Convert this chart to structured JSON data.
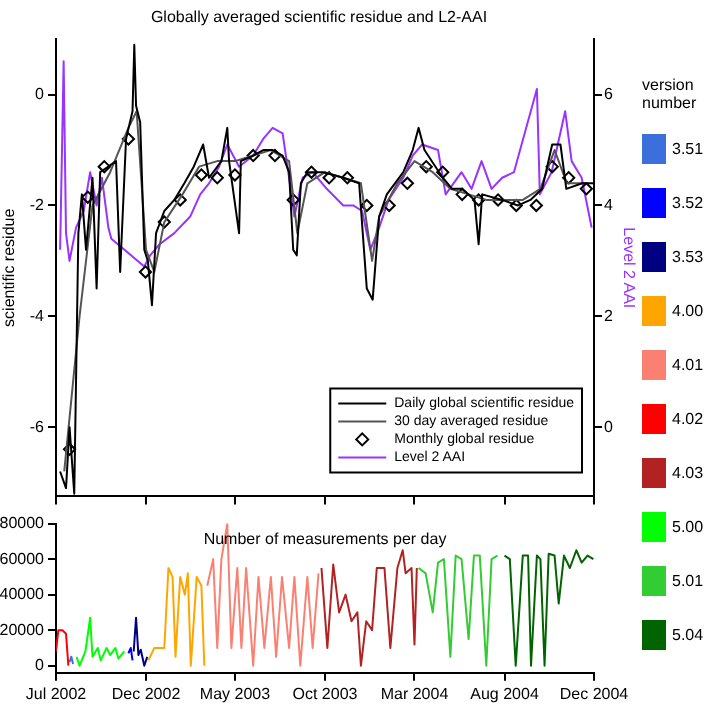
{
  "chart_data": [
    {
      "type": "line",
      "title": "Globally averaged scientific residue and L2-AAI",
      "ylabel": "scientific residue",
      "y2label": "Level 2 AAI",
      "xlim": [
        "2002-07-01",
        "2004-12-31"
      ],
      "xticks": [
        {
          "value": "2002-07-01",
          "label": null
        },
        {
          "value": "2002-12-01",
          "label": null
        },
        {
          "value": "2003-05-01",
          "label": null
        },
        {
          "value": "2003-10-01",
          "label": null
        },
        {
          "value": "2004-03-01",
          "label": null
        },
        {
          "value": "2004-08-01",
          "label": null
        },
        {
          "value": "2004-12-31",
          "label": null
        }
      ],
      "ylim": [
        -7.25,
        1
      ],
      "yticks": [
        -6,
        -4,
        -2,
        0
      ],
      "y2lim": [
        -1.25,
        7
      ],
      "y2ticks": [
        0,
        2,
        4,
        6
      ],
      "tick_labels": "y",
      "grid": false,
      "legend": "bottom right",
      "marker": "none",
      "line_style": "solid",
      "series": [
        {
          "name": "Daily global scientific residue",
          "color": "#000000",
          "x": [
            "2002-07-08",
            "2002-07-18",
            "2002-07-24",
            "2002-08-01",
            "2002-08-08",
            "2002-08-14",
            "2002-08-21",
            "2002-09-01",
            "2002-09-08",
            "2002-09-14",
            "2002-09-28",
            "2002-10-11",
            "2002-10-18",
            "2002-10-28",
            "2002-11-08",
            "2002-11-11",
            "2002-11-14",
            "2002-11-21",
            "2002-11-28",
            "2002-12-04",
            "2002-12-11",
            "2002-12-18",
            "2003-01-01",
            "2003-01-18",
            "2003-02-04",
            "2003-02-20",
            "2003-03-08",
            "2003-03-18",
            "2003-04-08",
            "2003-04-18",
            "2003-04-21",
            "2003-05-08",
            "2003-05-11",
            "2003-06-01",
            "2003-06-18",
            "2003-07-04",
            "2003-07-21",
            "2003-08-01",
            "2003-08-08",
            "2003-08-14",
            "2003-08-21",
            "2003-09-01",
            "2003-09-28",
            "2003-11-01",
            "2003-11-28",
            "2003-12-11",
            "2003-12-21",
            "2004-01-01",
            "2004-01-14",
            "2004-02-11",
            "2004-02-27",
            "2004-03-08",
            "2004-03-18",
            "2004-04-18",
            "2004-05-04",
            "2004-05-21",
            "2004-06-11",
            "2004-06-18",
            "2004-06-24",
            "2004-07-28",
            "2004-08-24",
            "2004-09-14",
            "2004-10-04",
            "2004-10-21",
            "2004-11-04",
            "2004-11-14",
            "2004-12-11",
            "2004-12-31"
          ],
          "values": [
            -6.8,
            -7.1,
            -6.0,
            -7.2,
            -2.5,
            -1.8,
            -2.8,
            -1.5,
            -3.5,
            -1.4,
            -1.3,
            -1.2,
            -3.2,
            -0.8,
            -0.3,
            0.9,
            -0.2,
            -0.5,
            -2.8,
            -3.0,
            -3.8,
            -2.5,
            -2.1,
            -1.9,
            -1.6,
            -1.3,
            -0.9,
            -1.5,
            -1.2,
            -0.6,
            -1.2,
            -2.5,
            -1.2,
            -1.1,
            -1.0,
            -1.0,
            -1.1,
            -1.4,
            -2.8,
            -2.9,
            -1.6,
            -1.4,
            -1.4,
            -1.5,
            -1.6,
            -3.5,
            -3.7,
            -2.2,
            -1.8,
            -1.4,
            -1.0,
            -0.6,
            -1.0,
            -1.5,
            -1.7,
            -1.7,
            -1.9,
            -2.7,
            -1.8,
            -1.9,
            -2.0,
            -1.9,
            -1.7,
            -0.9,
            -0.9,
            -1.7,
            -1.6,
            -1.6
          ]
        },
        {
          "name": "30 day averaged residue",
          "color": "#555555",
          "x": [
            "2002-07-15",
            "2002-08-10",
            "2002-09-01",
            "2002-10-01",
            "2002-11-01",
            "2002-11-15",
            "2002-12-01",
            "2002-12-15",
            "2003-01-01",
            "2003-02-01",
            "2003-03-01",
            "2003-04-01",
            "2003-05-01",
            "2003-06-01",
            "2003-07-01",
            "2003-08-01",
            "2003-08-15",
            "2003-09-01",
            "2003-10-01",
            "2003-11-01",
            "2003-12-01",
            "2003-12-20",
            "2004-01-01",
            "2004-02-01",
            "2004-03-01",
            "2004-04-01",
            "2004-05-01",
            "2004-06-01",
            "2004-07-01",
            "2004-08-01",
            "2004-09-01",
            "2004-10-01",
            "2004-10-25",
            "2004-11-15",
            "2004-12-15"
          ],
          "values": [
            -6.8,
            -4.0,
            -2.0,
            -1.4,
            -0.6,
            -0.3,
            -2.8,
            -3.2,
            -2.3,
            -1.8,
            -1.3,
            -1.2,
            -1.2,
            -1.1,
            -1.0,
            -1.2,
            -2.5,
            -1.6,
            -1.4,
            -1.5,
            -1.6,
            -3.0,
            -2.2,
            -1.6,
            -1.2,
            -1.4,
            -1.7,
            -1.8,
            -1.9,
            -1.9,
            -1.9,
            -1.7,
            -1.0,
            -1.6,
            -1.6
          ]
        },
        {
          "name": "Monthly global residue",
          "type": "scatter",
          "marker": "diamond",
          "color": "#000000",
          "x": [
            "2002-07-24",
            "2002-08-24",
            "2002-09-21",
            "2002-11-01",
            "2002-11-30",
            "2003-01-01",
            "2003-01-28",
            "2003-03-05",
            "2003-04-01",
            "2003-05-01",
            "2003-06-01",
            "2003-07-08",
            "2003-08-08",
            "2003-09-08",
            "2003-10-08",
            "2003-11-08",
            "2003-12-11",
            "2004-01-18",
            "2004-02-18",
            "2004-03-21",
            "2004-04-18",
            "2004-05-21",
            "2004-06-18",
            "2004-07-21",
            "2004-08-21",
            "2004-09-24",
            "2004-10-21",
            "2004-11-18",
            "2004-12-18"
          ],
          "values": [
            -6.4,
            -1.85,
            -1.3,
            -0.8,
            -3.2,
            -2.3,
            -1.9,
            -1.45,
            -1.5,
            -1.45,
            -1.1,
            -1.1,
            -1.9,
            -1.4,
            -1.5,
            -1.5,
            -2.0,
            -2.0,
            -1.6,
            -1.3,
            -1.4,
            -1.8,
            -1.9,
            -1.9,
            -2.0,
            -2.0,
            -1.3,
            -1.5,
            -1.7
          ]
        },
        {
          "name": "Level 2 AAI",
          "axis": "y2",
          "color": "#9933ff",
          "x": [
            "2002-07-08",
            "2002-07-14",
            "2002-07-18",
            "2002-07-24",
            "2002-08-04",
            "2002-08-17",
            "2002-08-28",
            "2002-09-08",
            "2002-09-17",
            "2002-09-28",
            "2002-10-03",
            "2002-11-28",
            "2002-12-08",
            "2002-12-24",
            "2003-01-18",
            "2003-02-14",
            "2003-03-03",
            "2003-03-18",
            "2003-04-04",
            "2003-04-18",
            "2003-05-08",
            "2003-06-01",
            "2003-06-18",
            "2003-07-04",
            "2003-07-21",
            "2003-08-01",
            "2003-08-10",
            "2003-08-24",
            "2003-09-10",
            "2003-10-04",
            "2003-11-01",
            "2003-11-18",
            "2003-12-03",
            "2003-12-17",
            "2004-01-01",
            "2004-01-17",
            "2004-02-11",
            "2004-02-27",
            "2004-03-14",
            "2004-04-10",
            "2004-04-23",
            "2004-05-20",
            "2004-06-06",
            "2004-06-23",
            "2004-07-10",
            "2004-07-28",
            "2004-08-17",
            "2004-09-25",
            "2004-09-30",
            "2004-10-20",
            "2004-11-12",
            "2004-11-23",
            "2004-12-10",
            "2004-12-27"
          ],
          "values": [
            3.2,
            6.6,
            3.5,
            3.0,
            3.6,
            3.9,
            4.6,
            4.0,
            4.5,
            3.6,
            3.4,
            2.9,
            3.1,
            3.3,
            3.5,
            3.8,
            4.2,
            4.4,
            4.7,
            5.1,
            4.7,
            4.9,
            5.2,
            5.4,
            5.3,
            4.5,
            3.8,
            4.5,
            4.6,
            4.3,
            4.0,
            4.0,
            3.9,
            3.2,
            3.6,
            4.1,
            4.5,
            4.9,
            5.1,
            5.0,
            4.2,
            4.6,
            4.3,
            4.8,
            4.3,
            4.5,
            4.6,
            6.1,
            4.2,
            4.6,
            5.7,
            4.8,
            4.5,
            3.6
          ]
        }
      ]
    },
    {
      "type": "line",
      "title": "Number of measurements per day",
      "legend_title": "version number",
      "xlim": [
        "2002-07-01",
        "2004-12-31"
      ],
      "xticks": [
        {
          "value": "2002-07-01",
          "label": "Jul 2002"
        },
        {
          "value": "2002-12-01",
          "label": "Dec 2002"
        },
        {
          "value": "2003-05-01",
          "label": "May 2003"
        },
        {
          "value": "2003-10-01",
          "label": "Oct 2003"
        },
        {
          "value": "2004-03-01",
          "label": "Mar 2004"
        },
        {
          "value": "2004-08-01",
          "label": "Aug 2004"
        },
        {
          "value": "2004-12-31",
          "label": "Dec 2004"
        }
      ],
      "ylim": [
        -4000,
        80000
      ],
      "yticks": [
        0,
        20000,
        40000,
        60000,
        80000
      ],
      "grid": false,
      "legend": "right",
      "marker": "none",
      "line_style": "solid",
      "series": [
        {
          "name": "3.51",
          "color": "#3c6fdc",
          "x": [
            "2002-07-24",
            "2002-07-27",
            "2002-07-30"
          ],
          "values": [
            2000,
            5000,
            1000
          ]
        },
        {
          "name": "3.52",
          "color": "#0000ff",
          "x": [
            "2002-11-01",
            "2002-11-05",
            "2002-11-08"
          ],
          "values": [
            7000,
            10000,
            3000
          ]
        },
        {
          "name": "3.53",
          "color": "#000080",
          "x": [
            "2002-11-10",
            "2002-11-14",
            "2002-11-18",
            "2002-11-22",
            "2002-11-28",
            "2002-12-03"
          ],
          "values": [
            8000,
            27000,
            6000,
            9000,
            0,
            5000
          ]
        },
        {
          "name": "4.00",
          "color": "#ffa500",
          "x": [
            "2002-12-05",
            "2002-12-15",
            "2003-01-01",
            "2003-01-08",
            "2003-01-15",
            "2003-01-20",
            "2003-01-28",
            "2003-02-05",
            "2003-02-10",
            "2003-02-15",
            "2003-02-25",
            "2003-03-05",
            "2003-03-10"
          ],
          "values": [
            3000,
            10000,
            10000,
            55000,
            50000,
            5000,
            50000,
            40000,
            52000,
            0,
            50000,
            45000,
            0
          ]
        },
        {
          "name": "4.01",
          "color": "#fa8072",
          "x": [
            "2003-03-15",
            "2003-03-25",
            "2003-04-01",
            "2003-04-08",
            "2003-04-18",
            "2003-04-25",
            "2003-05-05",
            "2003-05-12",
            "2003-05-20",
            "2003-06-01",
            "2003-06-10",
            "2003-06-20",
            "2003-07-01",
            "2003-07-10",
            "2003-07-20",
            "2003-08-01",
            "2003-08-10",
            "2003-08-20",
            "2003-09-01",
            "2003-09-10",
            "2003-09-20"
          ],
          "values": [
            45000,
            60000,
            10000,
            60000,
            80000,
            10000,
            55000,
            10000,
            55000,
            0,
            50000,
            10000,
            50000,
            5000,
            50000,
            10000,
            50000,
            0,
            50000,
            10000,
            52000
          ]
        },
        {
          "name": "4.02",
          "color": "#ff0000",
          "x": [
            "2002-07-01",
            "2002-07-05",
            "2002-07-12",
            "2002-07-18",
            "2002-07-22"
          ],
          "values": [
            8000,
            20000,
            20000,
            18000,
            0
          ]
        },
        {
          "name": "4.03",
          "color": "#b22222",
          "x": [
            "2003-09-25",
            "2003-10-05",
            "2003-10-15",
            "2003-10-25",
            "2003-11-05",
            "2003-11-15",
            "2003-11-25",
            "2003-12-01",
            "2003-12-10",
            "2003-12-20",
            "2003-12-28",
            "2004-01-10",
            "2004-01-20",
            "2004-02-01",
            "2004-02-10",
            "2004-02-15",
            "2004-02-25",
            "2004-03-01",
            "2004-03-05"
          ],
          "values": [
            55000,
            10000,
            57000,
            30000,
            40000,
            25000,
            30000,
            0,
            25000,
            20000,
            55000,
            55000,
            10000,
            55000,
            65000,
            52000,
            55000,
            12000,
            55000
          ]
        },
        {
          "name": "5.00",
          "color": "#00ff00",
          "x": [
            "2002-08-05",
            "2002-08-10",
            "2002-08-20",
            "2002-08-28",
            "2002-09-01",
            "2002-09-10",
            "2002-09-15",
            "2002-09-25",
            "2002-10-01",
            "2002-10-10",
            "2002-10-15",
            "2002-10-25"
          ],
          "values": [
            5000,
            0,
            8000,
            27000,
            5000,
            10000,
            3000,
            10000,
            6000,
            10000,
            4000,
            8000
          ]
        },
        {
          "name": "5.01",
          "color": "#32cd32",
          "x": [
            "2004-03-08",
            "2004-03-20",
            "2004-04-01",
            "2004-04-10",
            "2004-04-20",
            "2004-05-01",
            "2004-05-10",
            "2004-05-20",
            "2004-06-01",
            "2004-06-10",
            "2004-06-20",
            "2004-07-01",
            "2004-07-10",
            "2004-07-20"
          ],
          "values": [
            55000,
            52000,
            30000,
            58000,
            60000,
            5000,
            62000,
            60000,
            15000,
            62000,
            62000,
            0,
            60000,
            62000
          ]
        },
        {
          "name": "5.04",
          "color": "#006400",
          "x": [
            "2004-08-01",
            "2004-08-10",
            "2004-08-20",
            "2004-09-01",
            "2004-09-10",
            "2004-09-15",
            "2004-09-25",
            "2004-10-01",
            "2004-10-08",
            "2004-10-15",
            "2004-10-25",
            "2004-11-01",
            "2004-11-10",
            "2004-11-20",
            "2004-12-01",
            "2004-12-10",
            "2004-12-20",
            "2004-12-30"
          ],
          "values": [
            62000,
            60000,
            0,
            62000,
            62000,
            0,
            62000,
            60000,
            0,
            63000,
            62000,
            35000,
            62000,
            55000,
            65000,
            58000,
            62000,
            60000
          ]
        }
      ]
    }
  ]
}
